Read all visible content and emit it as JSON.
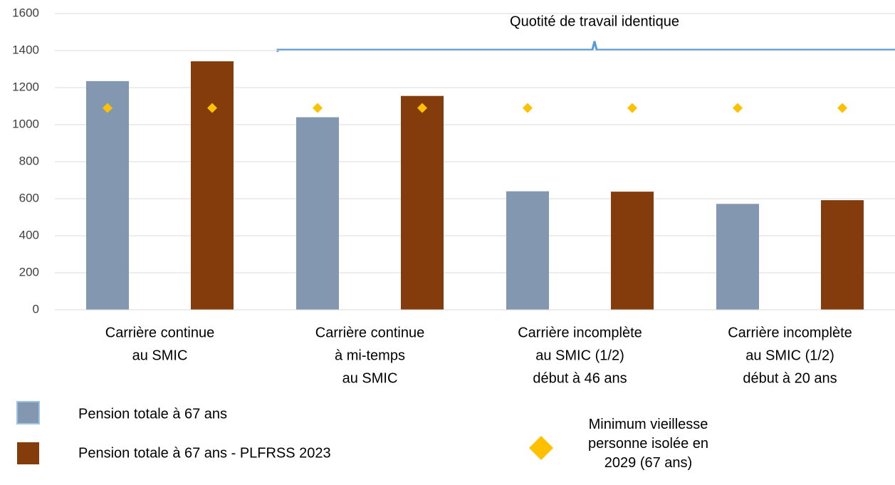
{
  "chart_data": {
    "type": "bar",
    "categories": [
      [
        "Carrière continue",
        "au SMIC"
      ],
      [
        "Carrière continue",
        "à mi-temps",
        "au SMIC"
      ],
      [
        "Carrière incomplète",
        "au SMIC (1/2)",
        "début à 46 ans"
      ],
      [
        "Carrière incomplète",
        "au SMIC (1/2)",
        "début à 20 ans"
      ]
    ],
    "series": [
      {
        "name": "Pension totale à 67 ans",
        "color": "#8497b0",
        "values": [
          1235,
          1040,
          640,
          572
        ]
      },
      {
        "name": "Pension totale à 67 ans - PLFRSS 2023",
        "color": "#843c0c",
        "values": [
          1342,
          1155,
          638,
          592
        ]
      },
      {
        "name": "Minimum vieillesse personne isolée en 2029 (67 ans)",
        "color": "#ffc000",
        "type": "scatter",
        "values": [
          1090,
          1090,
          1090,
          1090
        ]
      }
    ],
    "annotation": "Quotité de travail identique",
    "ylim": [
      0,
      1600
    ],
    "yticks": [
      0,
      200,
      400,
      600,
      800,
      1000,
      1200,
      1400,
      1600
    ],
    "grid": true
  }
}
